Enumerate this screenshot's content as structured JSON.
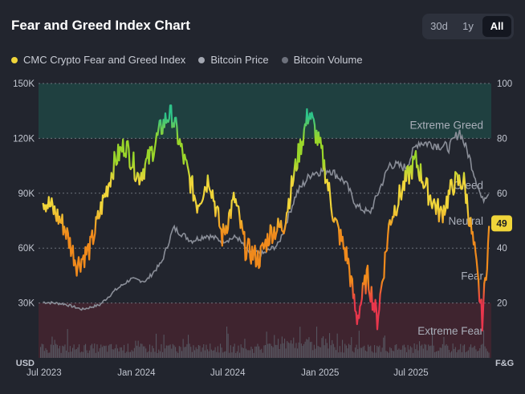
{
  "header": {
    "title": "Fear and Greed Index Chart"
  },
  "range_buttons": [
    {
      "label": "30d",
      "active": false
    },
    {
      "label": "1y",
      "active": false
    },
    {
      "label": "All",
      "active": true
    }
  ],
  "legend": [
    {
      "label": "CMC Crypto Fear and Greed Index",
      "color": "#f0d53a"
    },
    {
      "label": "Bitcoin Price",
      "color": "#a3a7b1"
    },
    {
      "label": "Bitcoin Volume",
      "color": "#6d717c"
    }
  ],
  "colors": {
    "background": "#22252e",
    "extreme_greed_band": "#1f4a47",
    "extreme_fear_band": "#4a2430",
    "price_line": "#8a8e98",
    "volume_bars": "#5b5f69",
    "badge": "#f0d53a",
    "fg_gradient": [
      "#e8364c",
      "#f08a1c",
      "#f0d53a",
      "#9ad62a",
      "#2ec48a"
    ]
  },
  "chart_data": {
    "type": "line",
    "title": "Fear and Greed Index Chart",
    "left_axis": {
      "unit": "USD",
      "ticks": [
        "150K",
        "120K",
        "90K",
        "60K",
        "30K"
      ],
      "range": [
        0,
        150000
      ]
    },
    "right_axis": {
      "unit": "F&G",
      "ticks": [
        "100",
        "80",
        "60",
        "40",
        "20"
      ],
      "range": [
        0,
        100
      ]
    },
    "x_ticks": [
      "Jul 2023",
      "Jan 2024",
      "Jul 2024",
      "Jan 2025",
      "Jul 2025"
    ],
    "zones": [
      {
        "label": "Extreme Greed",
        "value": 85
      },
      {
        "label": "Greed",
        "value": 63
      },
      {
        "label": "Neutral",
        "value": 50
      },
      {
        "label": "Fear",
        "value": 30
      },
      {
        "label": "Extreme Fear",
        "value": 10
      }
    ],
    "bands": [
      {
        "name": "Extreme Greed",
        "from": 80,
        "to": 100
      },
      {
        "name": "Extreme Fear",
        "from": 0,
        "to": 20
      }
    ],
    "current_value": "49",
    "series": [
      {
        "name": "CMC Crypto Fear and Greed Index",
        "axis": "right",
        "x": [
          "2023-06-29",
          "2023-07-15",
          "2023-08-10",
          "2023-09-05",
          "2023-10-01",
          "2023-10-25",
          "2023-11-20",
          "2023-12-10",
          "2024-01-05",
          "2024-01-25",
          "2024-02-20",
          "2024-03-10",
          "2024-04-05",
          "2024-05-01",
          "2024-05-25",
          "2024-06-20",
          "2024-07-15",
          "2024-08-05",
          "2024-09-01",
          "2024-09-25",
          "2024-10-20",
          "2024-11-15",
          "2024-12-10",
          "2025-01-05",
          "2025-01-30",
          "2025-02-25",
          "2025-03-15",
          "2025-04-05",
          "2025-04-25",
          "2025-05-20",
          "2025-06-15",
          "2025-07-10",
          "2025-08-05",
          "2025-08-30",
          "2025-09-25",
          "2025-10-15",
          "2025-11-05",
          "2025-11-20",
          "2025-12-05"
        ],
        "values": [
          58,
          55,
          48,
          34,
          40,
          56,
          72,
          78,
          66,
          72,
          84,
          90,
          72,
          56,
          66,
          44,
          58,
          40,
          36,
          46,
          48,
          71,
          90,
          74,
          50,
          36,
          14,
          30,
          14,
          50,
          62,
          72,
          60,
          52,
          64,
          64,
          38,
          14,
          49
        ]
      },
      {
        "name": "Bitcoin Price",
        "axis": "left",
        "x": [
          "2023-06-29",
          "2023-08-10",
          "2023-09-15",
          "2023-10-20",
          "2023-11-20",
          "2023-12-20",
          "2024-01-20",
          "2024-02-20",
          "2024-03-15",
          "2024-04-20",
          "2024-05-20",
          "2024-06-20",
          "2024-07-20",
          "2024-08-10",
          "2024-09-10",
          "2024-10-10",
          "2024-11-15",
          "2024-12-15",
          "2025-01-20",
          "2025-02-20",
          "2025-03-15",
          "2025-04-10",
          "2025-05-20",
          "2025-06-20",
          "2025-07-15",
          "2025-08-15",
          "2025-09-15",
          "2025-10-06",
          "2025-10-25",
          "2025-11-20",
          "2025-12-05"
        ],
        "values": [
          30500,
          29500,
          26500,
          29000,
          37000,
          43000,
          42000,
          52000,
          71000,
          64000,
          67000,
          64000,
          66000,
          58000,
          57000,
          62000,
          90000,
          101000,
          103000,
          96000,
          83000,
          79000,
          106000,
          104000,
          118000,
          117000,
          115000,
          124000,
          110000,
          86000,
          92000
        ]
      }
    ]
  }
}
